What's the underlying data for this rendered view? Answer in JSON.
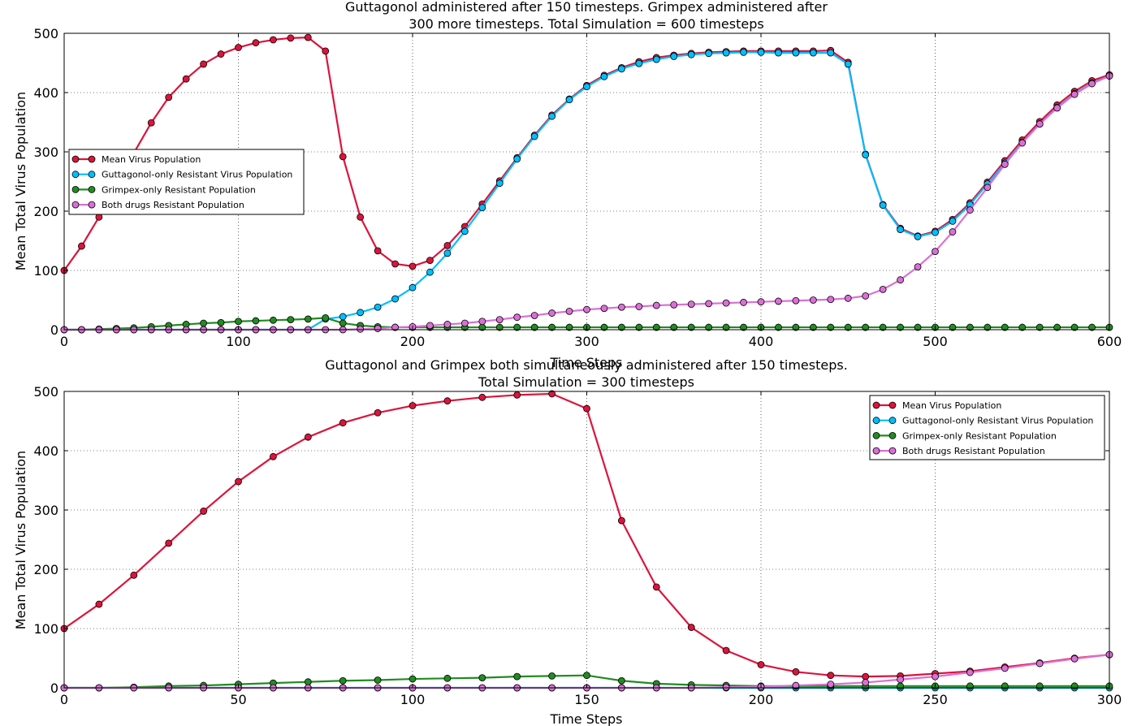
{
  "colors": {
    "mean": "#dc143c",
    "guttagonol": "#00bfff",
    "grimpex": "#228b22",
    "both": "#da70d6"
  },
  "chart_data": [
    {
      "type": "line",
      "title_lines": [
        "Guttagonol administered after 150 timesteps. Grimpex administered after",
        "300 more timesteps. Total Simulation = 600 timesteps"
      ],
      "xlabel": "Time Steps",
      "ylabel": "Mean Total Virus Population",
      "xlim": [
        0,
        600
      ],
      "ylim": [
        0,
        500
      ],
      "xticks": [
        0,
        100,
        200,
        300,
        400,
        500,
        600
      ],
      "yticks": [
        0,
        100,
        200,
        300,
        400,
        500
      ],
      "grid": true,
      "legend_position": "center-left",
      "x": [
        0,
        10,
        20,
        30,
        40,
        50,
        60,
        70,
        80,
        90,
        100,
        110,
        120,
        130,
        140,
        150,
        160,
        170,
        180,
        190,
        200,
        210,
        220,
        230,
        240,
        250,
        260,
        270,
        280,
        290,
        300,
        310,
        320,
        330,
        340,
        350,
        360,
        370,
        380,
        390,
        400,
        410,
        420,
        430,
        440,
        450,
        460,
        470,
        480,
        490,
        500,
        510,
        520,
        530,
        540,
        550,
        560,
        570,
        580,
        590,
        600
      ],
      "series": [
        {
          "name": "Mean Virus Population",
          "color_key": "mean",
          "values": [
            100,
            141,
            190,
            243,
            298,
            349,
            392,
            423,
            448,
            465,
            476,
            484,
            489,
            492,
            493,
            470,
            292,
            190,
            133,
            111,
            107,
            117,
            142,
            174,
            212,
            251,
            290,
            328,
            362,
            389,
            412,
            429,
            442,
            452,
            459,
            463,
            466,
            468,
            469,
            470,
            470,
            470,
            470,
            470,
            471,
            451,
            296,
            211,
            171,
            158,
            166,
            186,
            214,
            249,
            285,
            320,
            351,
            379,
            402,
            420,
            430
          ]
        },
        {
          "name": "Guttagonol-only Resistant Virus Population",
          "color_key": "guttagonol",
          "values": [
            0,
            0,
            0,
            0,
            0,
            0,
            0,
            0,
            0,
            0,
            0,
            0,
            0,
            0,
            0,
            18,
            22,
            29,
            38,
            52,
            71,
            97,
            129,
            166,
            206,
            247,
            288,
            326,
            360,
            388,
            410,
            427,
            440,
            449,
            456,
            461,
            464,
            466,
            467,
            468,
            468,
            467,
            467,
            467,
            467,
            448,
            295,
            210,
            169,
            157,
            164,
            183,
            211,
            246,
            281,
            316,
            347,
            375,
            398,
            416,
            428
          ]
        },
        {
          "name": "Grimpex-only Resistant Population",
          "color_key": "grimpex",
          "values": [
            0,
            0,
            1,
            2,
            3,
            5,
            7,
            9,
            11,
            12,
            14,
            15,
            16,
            17,
            18,
            20,
            11,
            7,
            5,
            4,
            4,
            4,
            4,
            4,
            4,
            4,
            4,
            4,
            4,
            4,
            4,
            4,
            4,
            4,
            4,
            4,
            4,
            4,
            4,
            4,
            4,
            4,
            4,
            4,
            4,
            4,
            4,
            4,
            4,
            4,
            4,
            4,
            4,
            4,
            4,
            4,
            4,
            4,
            4,
            4,
            4
          ]
        },
        {
          "name": "Both drugs Resistant Population",
          "color_key": "both",
          "values": [
            0,
            0,
            0,
            0,
            0,
            0,
            0,
            0,
            0,
            0,
            0,
            0,
            0,
            0,
            0,
            0,
            0,
            1,
            2,
            4,
            5,
            7,
            9,
            11,
            14,
            17,
            21,
            24,
            28,
            31,
            34,
            36,
            38,
            39,
            41,
            42,
            43,
            44,
            45,
            46,
            47,
            48,
            49,
            50,
            51,
            53,
            57,
            68,
            84,
            106,
            132,
            165,
            202,
            240,
            279,
            315,
            347,
            374,
            397,
            415,
            428
          ]
        }
      ]
    },
    {
      "type": "line",
      "title_lines": [
        "Guttagonol and Grimpex both simultaneously administered after 150 timesteps.",
        "Total Simulation = 300 timesteps"
      ],
      "xlabel": "Time Steps",
      "ylabel": "Mean Total Virus Population",
      "xlim": [
        0,
        300
      ],
      "ylim": [
        0,
        500
      ],
      "xticks": [
        0,
        50,
        100,
        150,
        200,
        250,
        300
      ],
      "yticks": [
        0,
        100,
        200,
        300,
        400,
        500
      ],
      "grid": true,
      "legend_position": "top-right",
      "x": [
        0,
        10,
        20,
        30,
        40,
        50,
        60,
        70,
        80,
        90,
        100,
        110,
        120,
        130,
        140,
        150,
        160,
        170,
        180,
        190,
        200,
        210,
        220,
        230,
        240,
        250,
        260,
        270,
        280,
        290,
        300
      ],
      "series": [
        {
          "name": "Mean Virus Population",
          "color_key": "mean",
          "values": [
            100,
            141,
            190,
            244,
            298,
            348,
            390,
            423,
            447,
            464,
            476,
            484,
            490,
            494,
            496,
            471,
            282,
            170,
            102,
            63,
            39,
            27,
            21,
            19,
            20,
            24,
            28,
            35,
            42,
            50,
            56
          ]
        },
        {
          "name": "Guttagonol-only Resistant Virus Population",
          "color_key": "guttagonol",
          "values": [
            0,
            0,
            0,
            0,
            0,
            0,
            0,
            0,
            0,
            0,
            0,
            0,
            0,
            0,
            0,
            0,
            0,
            0,
            0,
            0,
            0,
            0,
            0,
            0,
            0,
            0,
            0,
            0,
            0,
            0,
            0
          ]
        },
        {
          "name": "Grimpex-only Resistant Population",
          "color_key": "grimpex",
          "values": [
            0,
            0,
            1,
            3,
            4,
            6,
            8,
            10,
            12,
            13,
            15,
            16,
            17,
            19,
            20,
            21,
            12,
            7,
            5,
            4,
            3,
            3,
            3,
            3,
            3,
            3,
            3,
            3,
            3,
            3,
            3
          ]
        },
        {
          "name": "Both drugs Resistant Population",
          "color_key": "both",
          "values": [
            0,
            0,
            0,
            0,
            0,
            0,
            0,
            0,
            0,
            0,
            0,
            0,
            0,
            0,
            0,
            0,
            0,
            0,
            0,
            1,
            2,
            4,
            6,
            9,
            14,
            19,
            26,
            33,
            41,
            49,
            56
          ]
        }
      ]
    }
  ]
}
